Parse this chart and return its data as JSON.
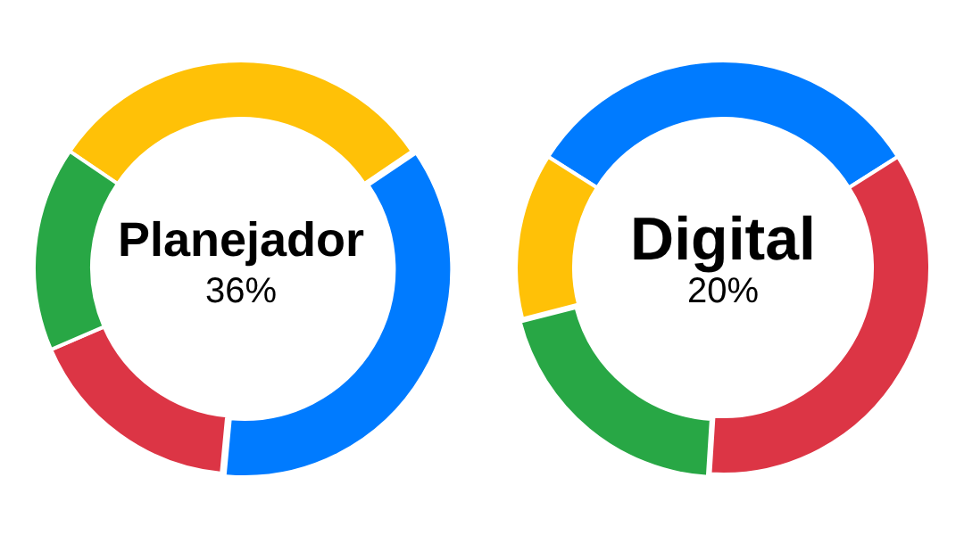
{
  "chart_data": [
    {
      "type": "donut",
      "title": "Planejador",
      "categories": [
        null,
        null,
        null,
        null
      ],
      "values": [
        31,
        36,
        17,
        16
      ],
      "colors": [
        "#ffc107",
        "#007bff",
        "#dc3545",
        "#28a745"
      ],
      "value_labels": [
        null,
        "36%",
        null,
        null
      ],
      "legend": false
    },
    {
      "type": "donut",
      "title": "Digital",
      "categories": [
        null,
        null,
        null,
        null
      ],
      "values": [
        32,
        35,
        20,
        13
      ],
      "colors": [
        "#007bff",
        "#dc3545",
        "#28a745",
        "#ffc107"
      ],
      "value_labels": [
        null,
        null,
        "20%",
        null
      ],
      "legend": false
    }
  ]
}
